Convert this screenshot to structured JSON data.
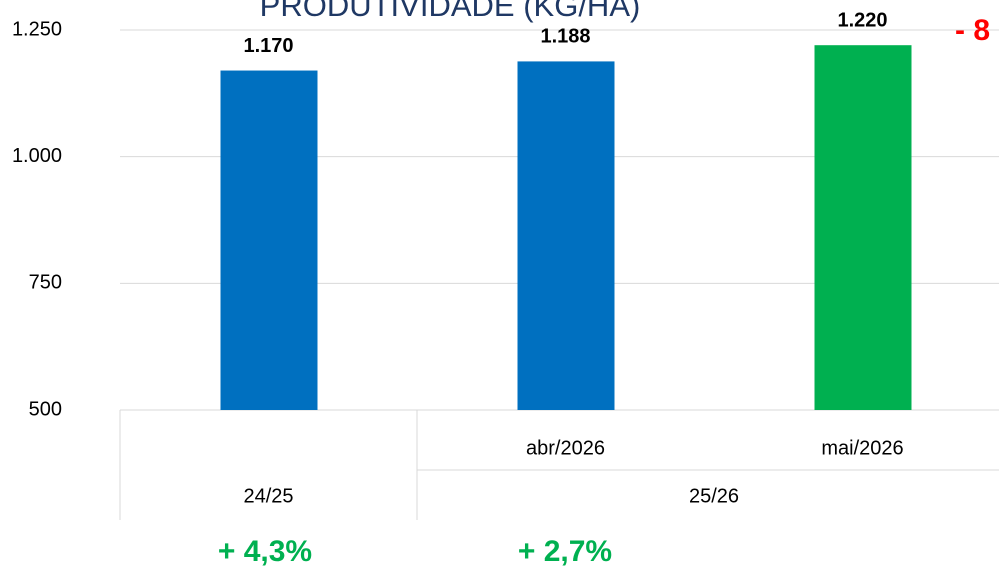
{
  "chart_data": {
    "type": "bar",
    "title": "PRODUTIVIDADE (KG/HA)",
    "categories": [
      null,
      "abr/2026",
      "mai/2026"
    ],
    "groups": [
      "24/25",
      "25/26"
    ],
    "values": [
      1170,
      1188,
      1220
    ],
    "value_labels": [
      "1.170",
      "1.188",
      "1.220"
    ],
    "colors": [
      "#0070c0",
      "#0070c0",
      "#00b050"
    ],
    "ylim": [
      500,
      1250
    ],
    "yticks": [
      500,
      750,
      {
        "value": 1000,
        "label": "1.000"
      },
      {
        "value": 1250,
        "label": "1.250"
      }
    ],
    "grid": true,
    "annotations": [
      {
        "text": "+ 4,3%",
        "color": "#00b050"
      },
      {
        "text": "+ 2,7%",
        "color": "#00b050"
      },
      {
        "text": "- 8",
        "color": "#ff0000"
      }
    ]
  }
}
